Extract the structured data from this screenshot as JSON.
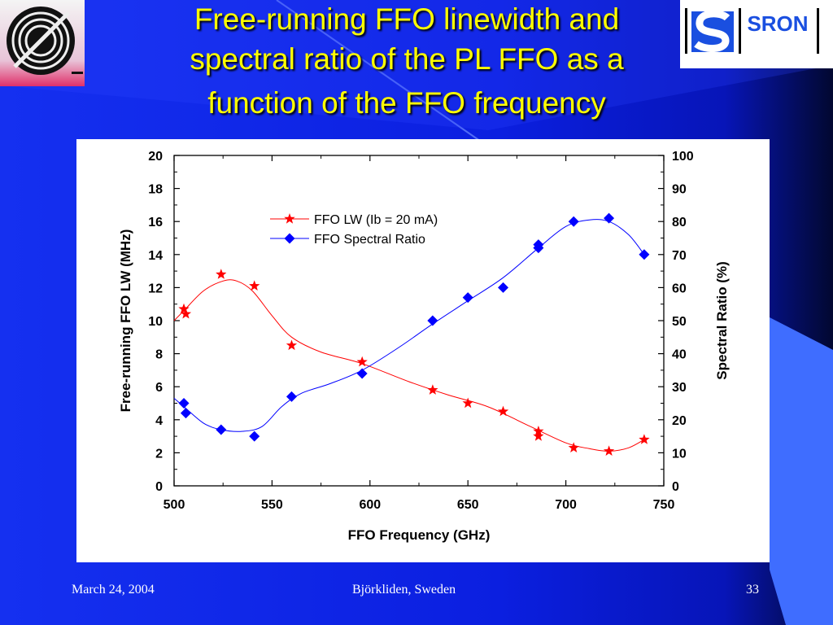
{
  "slide": {
    "title_lines": [
      "Free-running FFO linewidth and",
      "spectral ratio of the PL FFO as a",
      "function of the FFO frequency"
    ],
    "footer": {
      "date": "March 24, 2004",
      "place": "Björkliden, Sweden",
      "page": "33"
    },
    "logos": {
      "left": "ipm-logo",
      "right_text": "SRON"
    },
    "colors": {
      "background": "#0B1FE6",
      "title": "#FFFF00",
      "accent_blue": "#3F6DFF"
    }
  },
  "chart_data": {
    "type": "scatter",
    "title": "",
    "xlabel": "FFO Frequency (GHz)",
    "ylabel": "Free-running FFO LW (MHz)",
    "y2label": "Spectral Ratio (%)",
    "xlim": [
      500,
      750
    ],
    "ylim": [
      0,
      20
    ],
    "y2lim": [
      0,
      100
    ],
    "xticks": [
      "500",
      "550",
      "600",
      "650",
      "700",
      "750"
    ],
    "yticks": [
      "0",
      "2",
      "4",
      "6",
      "8",
      "10",
      "12",
      "14",
      "16",
      "18",
      "20"
    ],
    "y2ticks": [
      "0",
      "10",
      "20",
      "30",
      "40",
      "50",
      "60",
      "70",
      "80",
      "90",
      "100"
    ],
    "grid": false,
    "legend_position": "top-center",
    "series": [
      {
        "name": "FFO LW (Ib = 20 mA)",
        "axis": "left",
        "marker": "star",
        "color": "#FF0000",
        "points": [
          [
            505,
            10.7
          ],
          [
            506,
            10.4
          ],
          [
            524,
            12.8
          ],
          [
            541,
            12.1
          ],
          [
            560,
            8.5
          ],
          [
            596,
            7.5
          ],
          [
            632,
            5.8
          ],
          [
            650,
            5.0
          ],
          [
            668,
            4.5
          ],
          [
            686,
            3.3
          ],
          [
            686,
            3.0
          ],
          [
            704,
            2.3
          ],
          [
            722,
            2.1
          ],
          [
            740,
            2.8
          ]
        ],
        "fit": [
          [
            500,
            10.0
          ],
          [
            505,
            10.6
          ],
          [
            515,
            11.8
          ],
          [
            525,
            12.4
          ],
          [
            532,
            12.4
          ],
          [
            540,
            11.8
          ],
          [
            550,
            10.3
          ],
          [
            560,
            9.0
          ],
          [
            575,
            8.1
          ],
          [
            596,
            7.4
          ],
          [
            620,
            6.3
          ],
          [
            640,
            5.5
          ],
          [
            660,
            4.8
          ],
          [
            680,
            3.7
          ],
          [
            700,
            2.6
          ],
          [
            712,
            2.25
          ],
          [
            722,
            2.1
          ],
          [
            732,
            2.3
          ],
          [
            740,
            2.8
          ]
        ]
      },
      {
        "name": "FFO Spectral Ratio",
        "axis": "right",
        "marker": "diamond",
        "color": "#0000FF",
        "points": [
          [
            505,
            25
          ],
          [
            506,
            22
          ],
          [
            524,
            17
          ],
          [
            541,
            15
          ],
          [
            560,
            27
          ],
          [
            596,
            34
          ],
          [
            632,
            50
          ],
          [
            650,
            57
          ],
          [
            668,
            60
          ],
          [
            686,
            73
          ],
          [
            686,
            72
          ],
          [
            704,
            80
          ],
          [
            722,
            81
          ],
          [
            740,
            70
          ]
        ],
        "fit": [
          [
            500,
            26.5
          ],
          [
            505,
            24
          ],
          [
            515,
            19
          ],
          [
            524,
            17
          ],
          [
            535,
            16.5
          ],
          [
            545,
            18
          ],
          [
            555,
            24
          ],
          [
            565,
            28
          ],
          [
            580,
            31
          ],
          [
            596,
            35
          ],
          [
            615,
            42
          ],
          [
            632,
            49
          ],
          [
            650,
            56
          ],
          [
            668,
            63
          ],
          [
            686,
            72
          ],
          [
            700,
            78.5
          ],
          [
            712,
            80.5
          ],
          [
            722,
            80
          ],
          [
            732,
            76
          ],
          [
            740,
            70
          ]
        ]
      }
    ]
  }
}
